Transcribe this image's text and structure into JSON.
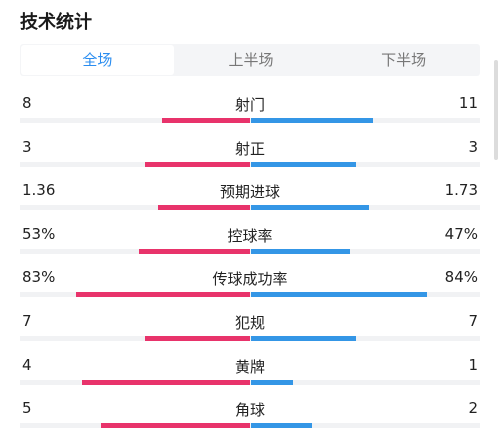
{
  "header": {
    "title": "技术统计"
  },
  "tabs": [
    {
      "label": "全场",
      "active": true
    },
    {
      "label": "上半场",
      "active": false
    },
    {
      "label": "下半场",
      "active": false
    }
  ],
  "colors": {
    "home": "#e8336b",
    "away": "#3496e6",
    "active_tab": "#2a8df0"
  },
  "stats": [
    {
      "label": "射门",
      "home": "8",
      "away": "11",
      "home_frac": 0.42,
      "away_frac": 0.58
    },
    {
      "label": "射正",
      "home": "3",
      "away": "3",
      "home_frac": 0.5,
      "away_frac": 0.5
    },
    {
      "label": "预期进球",
      "home": "1.36",
      "away": "1.73",
      "home_frac": 0.44,
      "away_frac": 0.56
    },
    {
      "label": "控球率",
      "home": "53%",
      "away": "47%",
      "home_frac": 0.53,
      "away_frac": 0.47
    },
    {
      "label": "传球成功率",
      "home": "83%",
      "away": "84%",
      "home_frac": 0.83,
      "away_frac": 0.84
    },
    {
      "label": "犯规",
      "home": "7",
      "away": "7",
      "home_frac": 0.5,
      "away_frac": 0.5
    },
    {
      "label": "黄牌",
      "home": "4",
      "away": "1",
      "home_frac": 0.8,
      "away_frac": 0.2
    },
    {
      "label": "角球",
      "home": "5",
      "away": "2",
      "home_frac": 0.71,
      "away_frac": 0.29
    }
  ]
}
